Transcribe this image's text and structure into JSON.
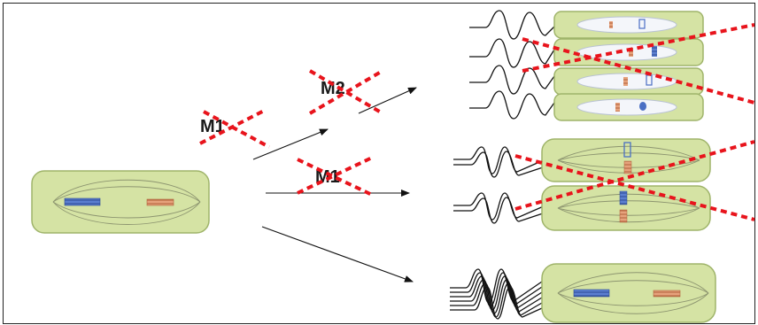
{
  "labels": {
    "m1_upper": "M1",
    "m2": "M2",
    "m1_middle": "M1"
  },
  "colors": {
    "cell_fill": "#d5e3a4",
    "cross_mark": "#e8141c",
    "chromosome_blue": "#4a6fc4",
    "chromosome_orange": "#d98a5a"
  }
}
